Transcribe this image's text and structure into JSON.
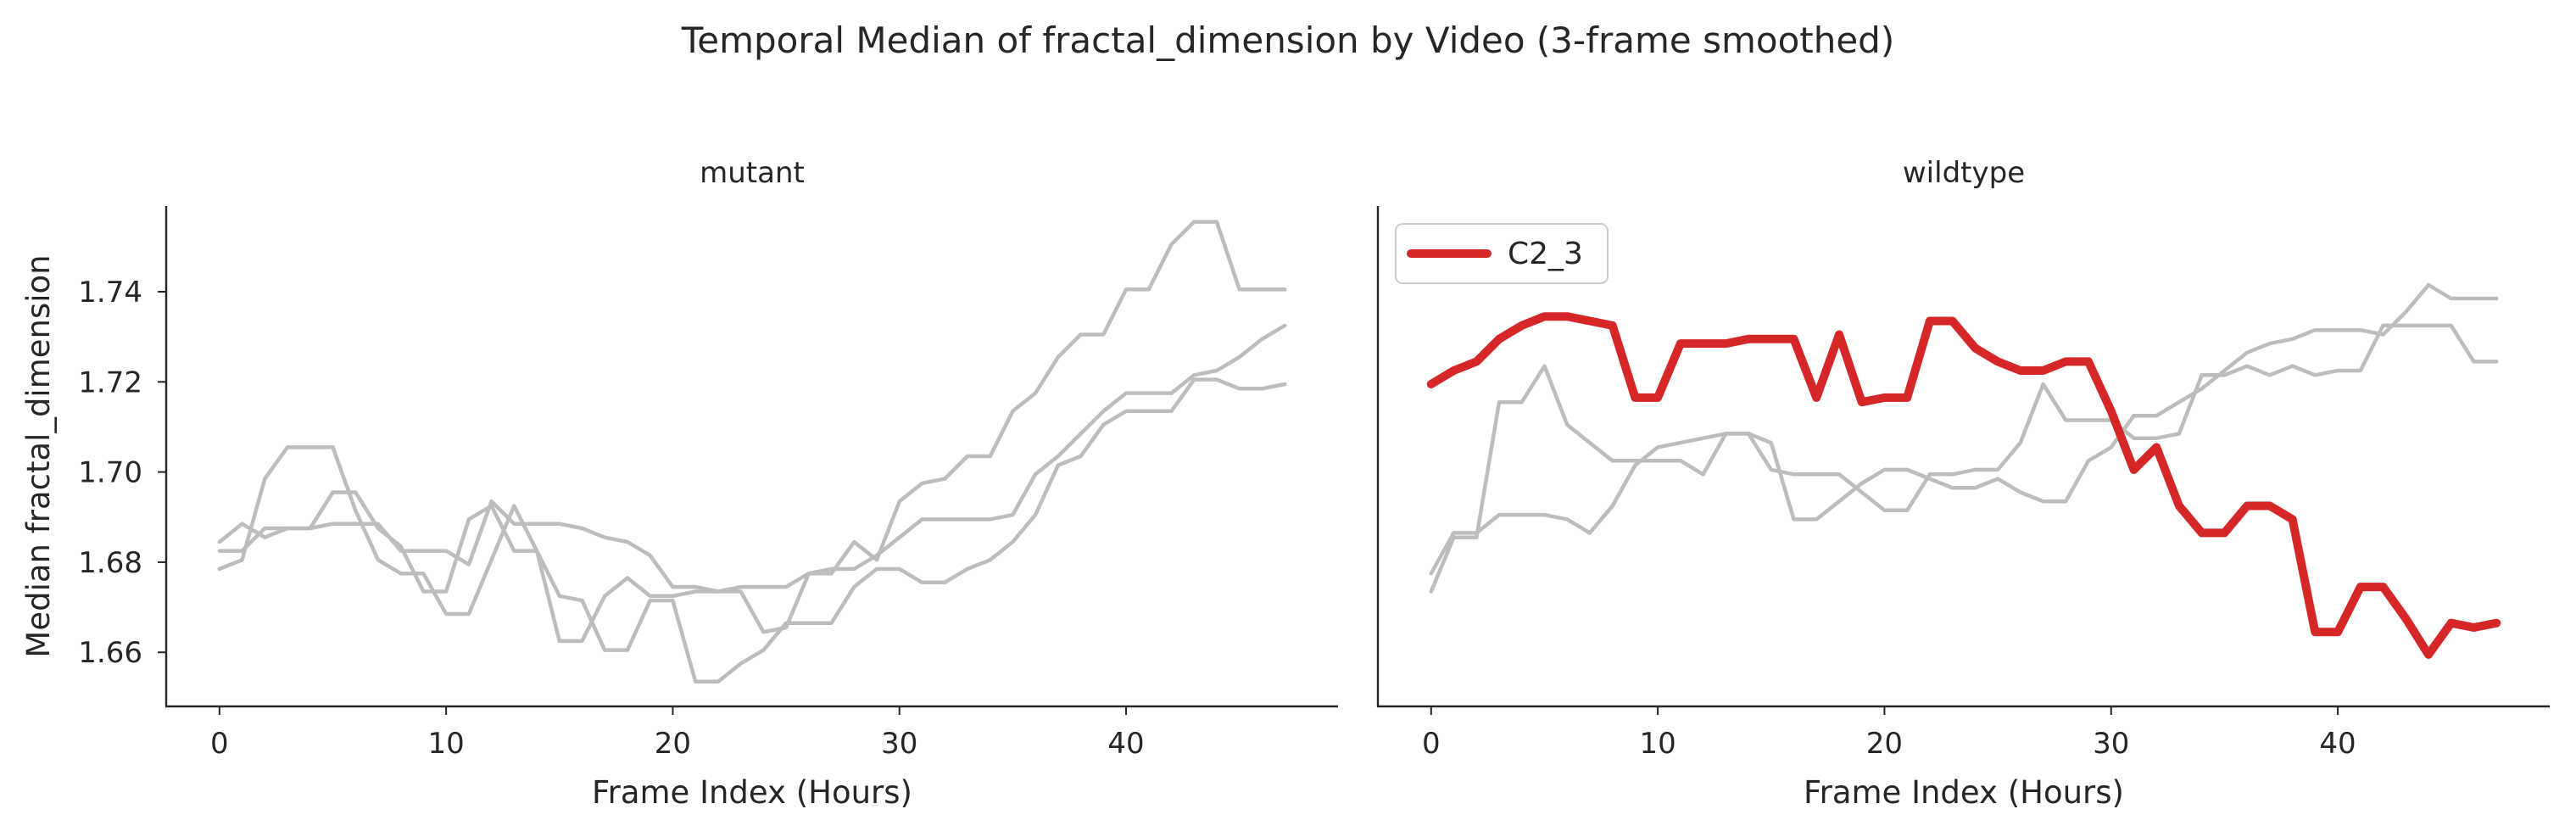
{
  "suptitle": "Temporal Median of fractal_dimension by Video (3-frame smoothed)",
  "colors": {
    "background": "#ffffff",
    "highlight": "#d62728",
    "other": "#bdbdbd",
    "text": "#262626"
  },
  "chart_data": [
    {
      "type": "line",
      "title": "mutant",
      "xlabel": "Frame Index (Hours)",
      "ylabel": "Median fractal_dimension",
      "xlim": [
        -2.35,
        49.35
      ],
      "ylim": [
        1.648,
        1.759
      ],
      "xticks": [
        0,
        10,
        20,
        30,
        40
      ],
      "yticks": [
        1.66,
        1.68,
        1.7,
        1.72,
        1.74
      ],
      "ytick_labels": [
        "1.66",
        "1.68",
        "1.70",
        "1.72",
        "1.74"
      ],
      "grid": false,
      "legend": null,
      "series": [
        {
          "highlight": false,
          "x": [
            0,
            1,
            2,
            3,
            4,
            5,
            6,
            7,
            8,
            9,
            10,
            11,
            12,
            13,
            14,
            15,
            16,
            17,
            18,
            19,
            20,
            21,
            22,
            23,
            24,
            25,
            26,
            27,
            28,
            29,
            30,
            31,
            32,
            33,
            34,
            35,
            36,
            37,
            38,
            39,
            40,
            41,
            42,
            43,
            44,
            45,
            46,
            47
          ],
          "y": [
            1.6845,
            1.6885,
            1.6855,
            1.6875,
            1.6875,
            1.6885,
            1.6885,
            1.6885,
            1.6825,
            1.6825,
            1.6825,
            1.6795,
            1.6935,
            1.6885,
            1.6885,
            1.6885,
            1.6875,
            1.6855,
            1.6845,
            1.6815,
            1.6745,
            1.6745,
            1.6735,
            1.6745,
            1.6745,
            1.6745,
            1.6775,
            1.6785,
            1.6785,
            1.6815,
            1.6855,
            1.6895,
            1.6895,
            1.6895,
            1.6895,
            1.6905,
            1.6995,
            1.7035,
            1.7085,
            1.7135,
            1.7175,
            1.7175,
            1.7175,
            1.7215,
            1.7225,
            1.7255,
            1.7295,
            1.7325
          ]
        },
        {
          "highlight": false,
          "x": [
            0,
            1,
            2,
            3,
            4,
            5,
            6,
            7,
            8,
            9,
            10,
            11,
            12,
            13,
            14,
            15,
            16,
            17,
            18,
            19,
            20,
            21,
            22,
            23,
            24,
            25,
            26,
            27,
            28,
            29,
            30,
            31,
            32,
            33,
            34,
            35,
            36,
            37,
            38,
            39,
            40,
            41,
            42,
            43,
            44,
            45,
            46,
            47
          ],
          "y": [
            1.6785,
            1.6805,
            1.6985,
            1.7055,
            1.7055,
            1.7055,
            1.6915,
            1.6805,
            1.6775,
            1.6775,
            1.6685,
            1.6685,
            1.6805,
            1.6925,
            1.6825,
            1.6725,
            1.6715,
            1.6605,
            1.6605,
            1.6715,
            1.6715,
            1.6535,
            1.6535,
            1.6575,
            1.6605,
            1.6665,
            1.6665,
            1.6665,
            1.6745,
            1.6785,
            1.6785,
            1.6755,
            1.6755,
            1.6785,
            1.6805,
            1.6845,
            1.6905,
            1.7015,
            1.7035,
            1.7105,
            1.7135,
            1.7135,
            1.7135,
            1.7205,
            1.7205,
            1.7185,
            1.7185,
            1.7195
          ]
        },
        {
          "highlight": false,
          "x": [
            0,
            1,
            2,
            3,
            4,
            5,
            6,
            7,
            8,
            9,
            10,
            11,
            12,
            13,
            14,
            15,
            16,
            17,
            18,
            19,
            20,
            21,
            22,
            23,
            24,
            25,
            26,
            27,
            28,
            29,
            30,
            31,
            32,
            33,
            34,
            35,
            36,
            37,
            38,
            39,
            40,
            41,
            42,
            43,
            44,
            45,
            46,
            47
          ],
          "y": [
            1.6825,
            1.6825,
            1.6875,
            1.6875,
            1.6875,
            1.6955,
            1.6955,
            1.6875,
            1.6835,
            1.6735,
            1.6735,
            1.6895,
            1.6925,
            1.6825,
            1.6825,
            1.6625,
            1.6625,
            1.6725,
            1.6765,
            1.6725,
            1.6725,
            1.6735,
            1.6735,
            1.6735,
            1.6645,
            1.6655,
            1.6775,
            1.6775,
            1.6845,
            1.6805,
            1.6935,
            1.6975,
            1.6985,
            1.7035,
            1.7035,
            1.7135,
            1.7175,
            1.7255,
            1.7305,
            1.7305,
            1.7405,
            1.7405,
            1.7505,
            1.7555,
            1.7555,
            1.7405,
            1.7405,
            1.7405
          ]
        }
      ]
    },
    {
      "type": "line",
      "title": "wildtype",
      "xlabel": "Frame Index (Hours)",
      "ylabel": "",
      "xlim": [
        -2.35,
        49.35
      ],
      "ylim": [
        1.648,
        1.759
      ],
      "xticks": [
        0,
        10,
        20,
        30,
        40
      ],
      "yticks": [],
      "ytick_labels": [],
      "grid": false,
      "legend": {
        "position": "upper-left"
      },
      "series": [
        {
          "highlight": false,
          "x": [
            0,
            1,
            2,
            3,
            4,
            5,
            6,
            7,
            8,
            9,
            10,
            11,
            12,
            13,
            14,
            15,
            16,
            17,
            18,
            19,
            20,
            21,
            22,
            23,
            24,
            25,
            26,
            27,
            28,
            29,
            30,
            31,
            32,
            33,
            34,
            35,
            36,
            37,
            38,
            39,
            40,
            41,
            42,
            43,
            44,
            45,
            46,
            47
          ],
          "y": [
            1.6735,
            1.6855,
            1.6855,
            1.7155,
            1.7155,
            1.7235,
            1.7105,
            1.7065,
            1.7025,
            1.7025,
            1.7025,
            1.7025,
            1.6995,
            1.7085,
            1.7085,
            1.7005,
            1.6995,
            1.6995,
            1.6995,
            1.6955,
            1.6915,
            1.6915,
            1.6995,
            1.6995,
            1.7005,
            1.7005,
            1.7065,
            1.7195,
            1.7115,
            1.7115,
            1.7115,
            1.7075,
            1.7075,
            1.7085,
            1.7215,
            1.7215,
            1.7235,
            1.7215,
            1.7235,
            1.7215,
            1.7225,
            1.7225,
            1.7325,
            1.7325,
            1.7325,
            1.7325,
            1.7245,
            1.7245
          ]
        },
        {
          "highlight": false,
          "x": [
            0,
            1,
            2,
            3,
            4,
            5,
            6,
            7,
            8,
            9,
            10,
            11,
            12,
            13,
            14,
            15,
            16,
            17,
            18,
            19,
            20,
            21,
            22,
            23,
            24,
            25,
            26,
            27,
            28,
            29,
            30,
            31,
            32,
            33,
            34,
            35,
            36,
            37,
            38,
            39,
            40,
            41,
            42,
            43,
            44,
            45,
            46,
            47
          ],
          "y": [
            1.6775,
            1.6865,
            1.6865,
            1.6905,
            1.6905,
            1.6905,
            1.6895,
            1.6865,
            1.6925,
            1.7015,
            1.7055,
            1.7065,
            1.7075,
            1.7085,
            1.7085,
            1.7065,
            1.6895,
            1.6895,
            1.6935,
            1.6975,
            1.7005,
            1.7005,
            1.6985,
            1.6965,
            1.6965,
            1.6985,
            1.6955,
            1.6935,
            1.6935,
            1.7025,
            1.7055,
            1.7125,
            1.7125,
            1.7155,
            1.7185,
            1.7225,
            1.7265,
            1.7285,
            1.7295,
            1.7315,
            1.7315,
            1.7315,
            1.7305,
            1.7355,
            1.7415,
            1.7385,
            1.7385,
            1.7385
          ]
        },
        {
          "highlight": true,
          "name": "C2_3",
          "x": [
            0,
            1,
            2,
            3,
            4,
            5,
            6,
            7,
            8,
            9,
            10,
            11,
            12,
            13,
            14,
            15,
            16,
            17,
            18,
            19,
            20,
            21,
            22,
            23,
            24,
            25,
            26,
            27,
            28,
            29,
            30,
            31,
            32,
            33,
            34,
            35,
            36,
            37,
            38,
            39,
            40,
            41,
            42,
            43,
            44,
            45,
            46,
            47
          ],
          "y": [
            1.7195,
            1.7225,
            1.7245,
            1.7295,
            1.7325,
            1.7345,
            1.7345,
            1.7335,
            1.7325,
            1.7165,
            1.7165,
            1.7285,
            1.7285,
            1.7285,
            1.7295,
            1.7295,
            1.7295,
            1.7165,
            1.7305,
            1.7155,
            1.7165,
            1.7165,
            1.7335,
            1.7335,
            1.7275,
            1.7245,
            1.7225,
            1.7225,
            1.7245,
            1.7245,
            1.7135,
            1.7005,
            1.7055,
            1.6925,
            1.6865,
            1.6865,
            1.6925,
            1.6925,
            1.6895,
            1.6645,
            1.6645,
            1.6745,
            1.6745,
            1.6675,
            1.6595,
            1.6665,
            1.6655,
            1.6665
          ]
        }
      ]
    }
  ]
}
